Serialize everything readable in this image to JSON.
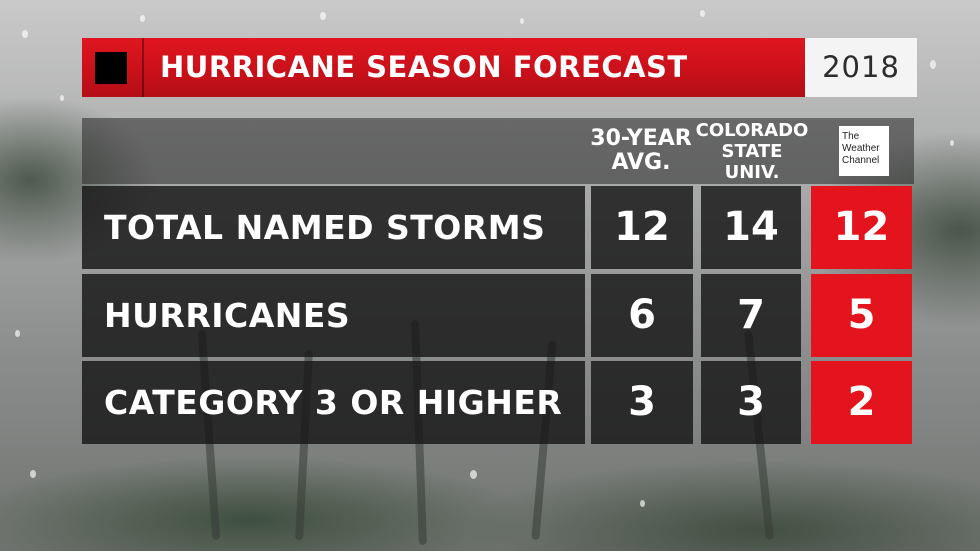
{
  "header": {
    "title": "HURRICANE SEASON FORECAST",
    "year": "2018"
  },
  "columns": {
    "avg": [
      "30-YEAR",
      "AVG."
    ],
    "csu": [
      "COLORADO",
      "STATE",
      "UNIV."
    ],
    "twc_logo": [
      "The",
      "Weather",
      "Channel"
    ]
  },
  "rows": [
    {
      "label": "TOTAL NAMED STORMS",
      "avg": "12",
      "csu": "14",
      "twc": "12"
    },
    {
      "label": "HURRICANES",
      "avg": "6",
      "csu": "7",
      "twc": "5"
    },
    {
      "label": "CATEGORY 3 OR HIGHER",
      "avg": "3",
      "csu": "3",
      "twc": "2"
    }
  ],
  "colors": {
    "accent_red": "#e3141d",
    "title_bar_red": "#c8101a",
    "dark_cell": "#161616"
  }
}
